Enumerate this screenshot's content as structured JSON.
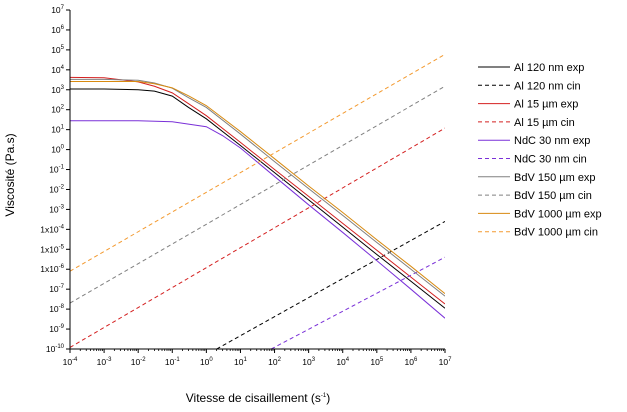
{
  "chart_data": {
    "type": "line",
    "title": "",
    "xlabel": "Vitesse de cisaillement (s",
    "xlabel_sup": "-1",
    "xlabel_end": ")",
    "ylabel": "Viscosité (Pa.s)",
    "x_scale": "log",
    "y_scale": "log",
    "xlim": [
      0.0001,
      10000000
    ],
    "ylim": [
      1e-10,
      10000000
    ],
    "grid": false,
    "legend_position": "right",
    "x_ticks": [
      {
        "base": "10",
        "exp": "-4"
      },
      {
        "base": "10",
        "exp": "-3"
      },
      {
        "base": "10",
        "exp": "-2"
      },
      {
        "base": "10",
        "exp": "-1"
      },
      {
        "base": "10",
        "exp": "0"
      },
      {
        "base": "10",
        "exp": "1"
      },
      {
        "base": "10",
        "exp": "2"
      },
      {
        "base": "10",
        "exp": "3"
      },
      {
        "base": "10",
        "exp": "4"
      },
      {
        "base": "10",
        "exp": "5"
      },
      {
        "base": "10",
        "exp": "6"
      },
      {
        "base": "10",
        "exp": "7"
      }
    ],
    "y_ticks": [
      {
        "base": "10",
        "exp": "-10"
      },
      {
        "base": "10",
        "exp": "-9"
      },
      {
        "base": "10",
        "exp": "-8"
      },
      {
        "base": "10",
        "exp": "-7"
      },
      {
        "base": "1x10",
        "exp": "-6"
      },
      {
        "base": "1x10",
        "exp": "-5"
      },
      {
        "base": "1x10",
        "exp": "-4"
      },
      {
        "base": "10",
        "exp": "-3"
      },
      {
        "base": "10",
        "exp": "-2"
      },
      {
        "base": "10",
        "exp": "-1"
      },
      {
        "base": "10",
        "exp": "0"
      },
      {
        "base": "10",
        "exp": "1"
      },
      {
        "base": "10",
        "exp": "2"
      },
      {
        "base": "10",
        "exp": "3"
      },
      {
        "base": "10",
        "exp": "4"
      },
      {
        "base": "10",
        "exp": "5"
      },
      {
        "base": "10",
        "exp": "6"
      },
      {
        "base": "10",
        "exp": "7"
      }
    ],
    "series": [
      {
        "name": "Al 120 nm exp",
        "color": "#000000",
        "dashed": false,
        "x": [
          0.0001,
          0.001,
          0.01,
          0.03,
          0.1,
          0.3,
          1,
          10,
          100,
          1000,
          10000,
          100000,
          1000000,
          10000000
        ],
        "y": [
          1100,
          1100,
          1000,
          850,
          480,
          130,
          35,
          1.6,
          0.07,
          0.003,
          0.00013,
          5.5e-06,
          2.5e-07,
          1.1e-08
        ]
      },
      {
        "name": "Al 120 nm cin",
        "color": "#000000",
        "dashed": true,
        "x": [
          2,
          10000000
        ],
        "y": [
          1e-10,
          0.00025
        ]
      },
      {
        "name": "Al 15 µm exp",
        "color": "#d42020",
        "dashed": false,
        "x": [
          0.0001,
          0.001,
          0.01,
          0.03,
          0.1,
          0.3,
          1,
          10,
          100,
          1000,
          10000,
          100000,
          1000000,
          10000000
        ],
        "y": [
          4200,
          4000,
          2500,
          1500,
          700,
          200,
          50,
          2.3,
          0.1,
          0.0045,
          0.0002,
          9e-06,
          4e-07,
          1.8e-08
        ]
      },
      {
        "name": "Al 15 µm cin",
        "color": "#d42020",
        "dashed": true,
        "x": [
          0.0001,
          10000000
        ],
        "y": [
          1.2e-10,
          12
        ]
      },
      {
        "name": "NdC 30 nm exp",
        "color": "#7a30d8",
        "dashed": false,
        "x": [
          0.0001,
          0.01,
          0.1,
          1,
          3,
          10,
          100,
          1000,
          10000,
          100000,
          1000000,
          10000000
        ],
        "y": [
          28,
          28,
          25,
          14,
          5,
          1.2,
          0.045,
          0.0017,
          7e-05,
          2.7e-06,
          1e-07,
          3.5e-09
        ]
      },
      {
        "name": "NdC 30 nm cin",
        "color": "#7a30d8",
        "dashed": true,
        "x": [
          80,
          10000000
        ],
        "y": [
          1e-10,
          4e-06
        ]
      },
      {
        "name": "BdV 150 µm exp",
        "color": "#808080",
        "dashed": false,
        "x": [
          0.0001,
          0.001,
          0.01,
          0.03,
          0.1,
          0.3,
          1,
          10,
          100,
          1000,
          10000,
          100000,
          1000000,
          10000000
        ],
        "y": [
          3300,
          3300,
          3000,
          2200,
          1200,
          400,
          130,
          6,
          0.25,
          0.011,
          0.0005,
          2.2e-05,
          1e-06,
          4.5e-08
        ]
      },
      {
        "name": "BdV 150 µm cin",
        "color": "#808080",
        "dashed": true,
        "x": [
          0.0001,
          10000000
        ],
        "y": [
          2e-08,
          1500
        ]
      },
      {
        "name": "BdV 1000 µm exp",
        "color": "#d88a10",
        "dashed": false,
        "x": [
          0.0001,
          0.001,
          0.01,
          0.03,
          0.1,
          0.3,
          1,
          10,
          100,
          1000,
          10000,
          100000,
          1000000,
          10000000
        ],
        "y": [
          2600,
          2600,
          2600,
          2000,
          1250,
          500,
          160,
          8,
          0.35,
          0.015,
          0.0007,
          3e-05,
          1.4e-06,
          6e-08
        ]
      },
      {
        "name": "BdV 1000 µm cin",
        "color": "#f39a30",
        "dashed": true,
        "x": [
          0.0001,
          10000000
        ],
        "y": [
          8e-07,
          60000
        ]
      }
    ]
  }
}
